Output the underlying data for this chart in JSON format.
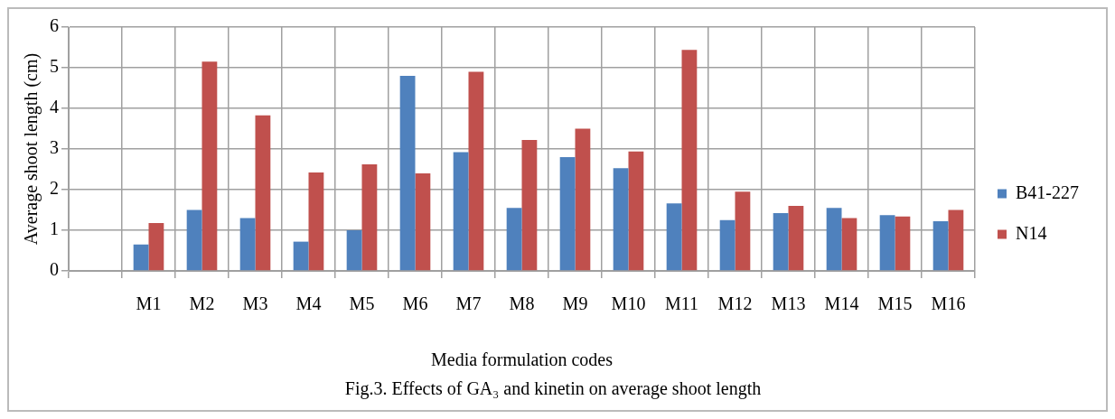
{
  "chart_data": {
    "type": "bar",
    "title": "Fig.3. Effects of GA₃ and kinetin on average shoot length",
    "xlabel": "Media formulation codes",
    "ylabel": "Average shoot length (cm)",
    "categories": [
      null,
      "M1",
      "M2",
      "M3",
      "M4",
      "M5",
      "M6",
      "M7",
      "M8",
      "M9",
      "M10",
      "M11",
      "M12",
      "M13",
      "M14",
      "M15",
      "M16"
    ],
    "series": [
      {
        "name": "B41-227",
        "color": "#4f81bd",
        "values": [
          null,
          0.65,
          1.5,
          1.3,
          0.72,
          1.0,
          4.8,
          2.92,
          1.55,
          2.8,
          2.53,
          1.66,
          1.25,
          1.42,
          1.55,
          1.37,
          1.22
        ]
      },
      {
        "name": "N14",
        "color": "#c0504d",
        "values": [
          null,
          1.18,
          5.15,
          3.83,
          2.42,
          2.62,
          2.4,
          4.9,
          3.22,
          3.5,
          2.94,
          5.44,
          1.95,
          1.6,
          1.3,
          1.34,
          1.5
        ]
      }
    ],
    "ylim": [
      0,
      6
    ],
    "yticks": [
      0,
      1,
      2,
      3,
      4,
      5,
      6
    ],
    "grid": true,
    "legend": "right"
  }
}
